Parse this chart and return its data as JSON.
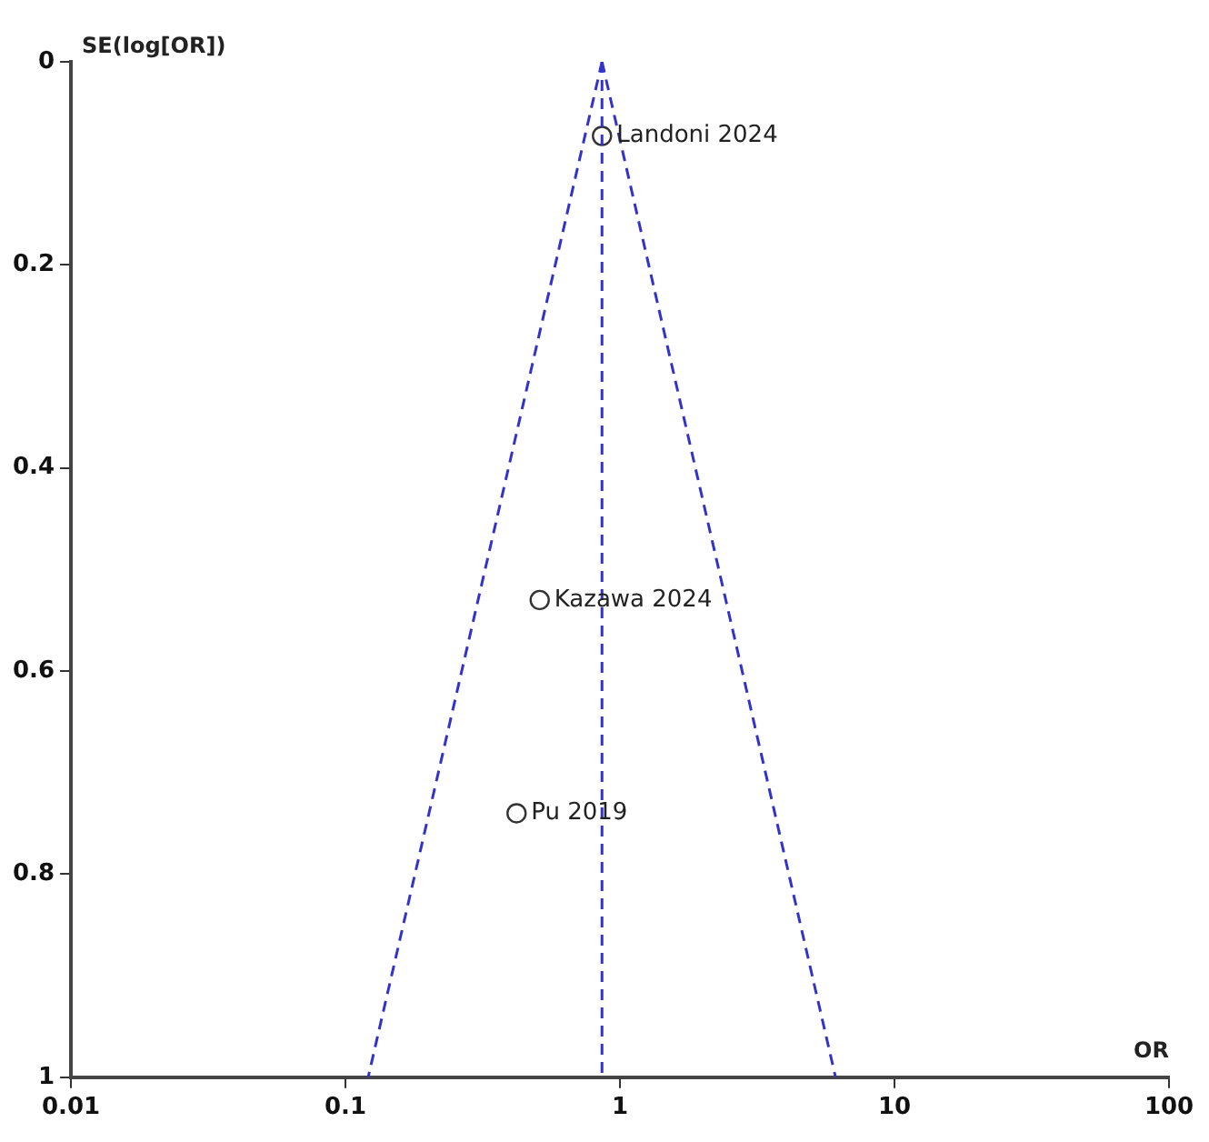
{
  "chart_data": {
    "type": "scatter",
    "xlabel": "OR",
    "ylabel": "SE(log[OR])",
    "log": "x",
    "grid": false,
    "legend": false,
    "xlim": [
      0.01,
      100
    ],
    "xticks": [
      0.01,
      0.1,
      1,
      10,
      100
    ],
    "ylim": [
      1,
      0
    ],
    "yticks": [
      0,
      0.2,
      0.4,
      0.6,
      0.8,
      1
    ],
    "series": [
      {
        "type": "line",
        "x": [
          0.86,
          0.121
        ],
        "values": [
          0,
          1
        ],
        "color": "#3333cc",
        "line_style": "dashed",
        "marker": "none"
      },
      {
        "type": "line",
        "x": [
          0.86,
          6.1
        ],
        "values": [
          0,
          1
        ],
        "color": "#3333cc",
        "line_style": "dashed",
        "marker": "none"
      },
      {
        "type": "line",
        "x": [
          0.86,
          0.86
        ],
        "values": [
          0,
          1
        ],
        "color": "#3333cc",
        "line_style": "dashed",
        "marker": "none"
      },
      {
        "x": [
          0.86,
          0.51,
          0.42
        ],
        "values": [
          0.073,
          0.53,
          0.74
        ],
        "color": "#333333",
        "marker": "circle"
      }
    ],
    "annotations": [
      {
        "text": "Landoni 2024",
        "x": 0.86,
        "y": 0.073
      },
      {
        "text": "Kazawa 2024",
        "x": 0.51,
        "y": 0.53
      },
      {
        "text": "Pu 2019",
        "x": 0.42,
        "y": 0.74
      }
    ]
  }
}
